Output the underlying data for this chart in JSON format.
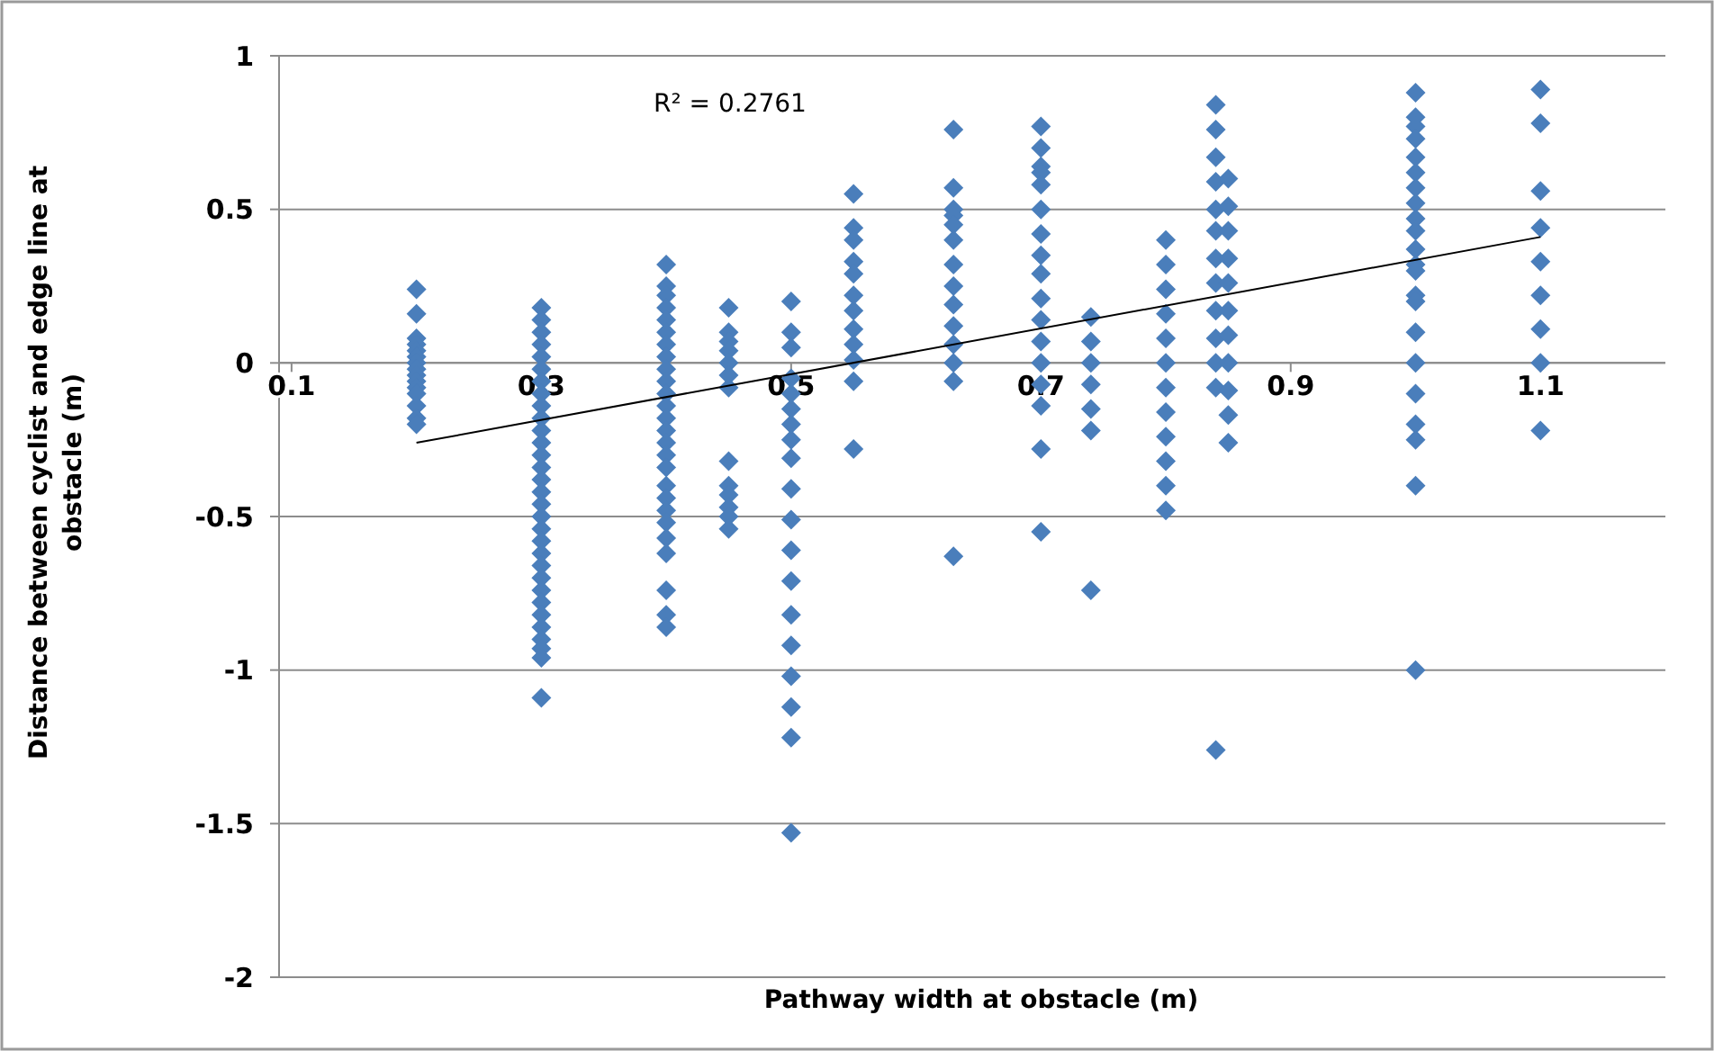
{
  "chart_data": {
    "type": "scatter",
    "xlabel": "Pathway width at obstacle (m)",
    "ylabel": "Distance between cyclist and edge line at obstacle (m)",
    "xlim": [
      0.09,
      1.2
    ],
    "ylim": [
      -2,
      1
    ],
    "xticks": [
      0.1,
      0.3,
      0.5,
      0.7,
      0.9,
      1.1
    ],
    "yticks": [
      1,
      0.5,
      0,
      -0.5,
      -1,
      -1.5,
      -2
    ],
    "grid": "y",
    "annotations": [
      "R² = 0.2761"
    ],
    "series": [
      {
        "marker": "diamond",
        "color": "#4a7ebb",
        "x": [
          0.2,
          0.2,
          0.2,
          0.2,
          0.2,
          0.2,
          0.2,
          0.2,
          0.2,
          0.2,
          0.2,
          0.2,
          0.2,
          0.2,
          0.2,
          0.3,
          0.3,
          0.3,
          0.3,
          0.3,
          0.3,
          0.3,
          0.3,
          0.3,
          0.3,
          0.3,
          0.3,
          0.3,
          0.3,
          0.3,
          0.3,
          0.3,
          0.3,
          0.3,
          0.3,
          0.3,
          0.3,
          0.3,
          0.3,
          0.3,
          0.3,
          0.3,
          0.3,
          0.3,
          0.3,
          0.3,
          0.4,
          0.4,
          0.4,
          0.4,
          0.4,
          0.4,
          0.4,
          0.4,
          0.4,
          0.4,
          0.4,
          0.4,
          0.4,
          0.4,
          0.4,
          0.4,
          0.4,
          0.4,
          0.4,
          0.4,
          0.4,
          0.4,
          0.4,
          0.4,
          0.4,
          0.4,
          0.45,
          0.45,
          0.45,
          0.45,
          0.45,
          0.45,
          0.45,
          0.45,
          0.45,
          0.45,
          0.45,
          0.45,
          0.45,
          0.5,
          0.5,
          0.5,
          0.5,
          0.5,
          0.5,
          0.5,
          0.5,
          0.5,
          0.5,
          0.5,
          0.5,
          0.5,
          0.5,
          0.5,
          0.5,
          0.5,
          0.5,
          0.5,
          0.55,
          0.55,
          0.55,
          0.55,
          0.55,
          0.55,
          0.55,
          0.55,
          0.55,
          0.55,
          0.55,
          0.55,
          0.63,
          0.63,
          0.63,
          0.63,
          0.63,
          0.63,
          0.63,
          0.63,
          0.63,
          0.63,
          0.63,
          0.63,
          0.63,
          0.63,
          0.7,
          0.7,
          0.7,
          0.7,
          0.7,
          0.7,
          0.7,
          0.7,
          0.7,
          0.7,
          0.7,
          0.7,
          0.7,
          0.7,
          0.7,
          0.7,
          0.7,
          0.74,
          0.74,
          0.74,
          0.74,
          0.74,
          0.74,
          0.74,
          0.8,
          0.8,
          0.8,
          0.8,
          0.8,
          0.8,
          0.8,
          0.8,
          0.8,
          0.8,
          0.8,
          0.8,
          0.84,
          0.84,
          0.84,
          0.84,
          0.84,
          0.84,
          0.84,
          0.84,
          0.84,
          0.84,
          0.84,
          0.84,
          0.84,
          0.85,
          0.85,
          0.85,
          0.85,
          0.85,
          0.85,
          0.85,
          0.85,
          0.85,
          0.85,
          0.85,
          1.0,
          1.0,
          1.0,
          1.0,
          1.0,
          1.0,
          1.0,
          1.0,
          1.0,
          1.0,
          1.0,
          1.0,
          1.0,
          1.0,
          1.0,
          1.0,
          1.0,
          1.0,
          1.0,
          1.0,
          1.0,
          1.0,
          1.1,
          1.1,
          1.1,
          1.1,
          1.1,
          1.1,
          1.1,
          1.1,
          1.1
        ],
        "values": [
          0.24,
          0.16,
          0.08,
          0.06,
          0.04,
          0.02,
          0,
          -0.02,
          -0.04,
          -0.06,
          -0.08,
          -0.1,
          -0.14,
          -0.18,
          -0.2,
          0.18,
          0.14,
          0.1,
          0.06,
          0.02,
          -0.02,
          -0.06,
          -0.1,
          -0.14,
          -0.18,
          -0.22,
          -0.26,
          -0.3,
          -0.34,
          -0.38,
          -0.42,
          -0.46,
          -0.5,
          -0.54,
          -0.58,
          -0.62,
          -0.66,
          -0.7,
          -0.74,
          -0.78,
          -0.82,
          -0.86,
          -0.9,
          -0.93,
          -0.96,
          -1.09,
          0.32,
          0.25,
          0.22,
          0.18,
          0.14,
          0.1,
          0.06,
          0.02,
          -0.02,
          -0.06,
          -0.1,
          -0.14,
          -0.18,
          -0.22,
          -0.26,
          -0.3,
          -0.34,
          -0.4,
          -0.44,
          -0.48,
          -0.52,
          -0.57,
          -0.62,
          -0.74,
          -0.82,
          -0.86,
          0.18,
          0.1,
          0.07,
          0.04,
          0,
          -0.04,
          -0.08,
          -0.32,
          -0.4,
          -0.43,
          -0.47,
          -0.5,
          -0.54,
          0.2,
          0.1,
          0.05,
          -0.05,
          -0.1,
          -0.15,
          -0.2,
          -0.25,
          -0.31,
          -0.41,
          -0.51,
          -0.61,
          -0.71,
          -0.82,
          -0.92,
          -1.02,
          -1.12,
          -1.22,
          -1.53,
          0.55,
          0.44,
          0.4,
          0.33,
          0.29,
          0.22,
          0.17,
          0.11,
          0.06,
          0.01,
          -0.06,
          -0.28,
          0.76,
          0.57,
          0.5,
          0.48,
          0.45,
          0.4,
          0.32,
          0.25,
          0.19,
          0.12,
          0.06,
          0,
          -0.06,
          -0.63,
          0.77,
          0.7,
          0.64,
          0.62,
          0.58,
          0.5,
          0.42,
          0.35,
          0.29,
          0.21,
          0.14,
          0.07,
          0,
          -0.07,
          -0.14,
          -0.28,
          -0.55,
          0.15,
          0.07,
          0,
          -0.07,
          -0.15,
          -0.22,
          -0.74,
          0.4,
          0.32,
          0.24,
          0.16,
          0.08,
          0,
          -0.08,
          -0.16,
          -0.24,
          -0.32,
          -0.4,
          -0.48,
          0.84,
          0.76,
          0.67,
          0.59,
          0.5,
          0.43,
          0.34,
          0.26,
          0.17,
          0.08,
          0,
          -0.08,
          -1.26,
          0.6,
          0.51,
          0.43,
          0.34,
          0.26,
          0.17,
          0.09,
          0,
          -0.09,
          -0.17,
          -0.26,
          0.88,
          0.8,
          0.77,
          0.73,
          0.67,
          0.62,
          0.57,
          0.52,
          0.47,
          0.43,
          0.37,
          0.32,
          0.3,
          0.22,
          0.2,
          0.1,
          0,
          -0.1,
          -0.2,
          -0.25,
          -0.4,
          -1.0,
          0.89,
          0.78,
          0.56,
          0.44,
          0.33,
          0.22,
          0.11,
          0,
          -0.22
        ]
      },
      {
        "type": "line",
        "marker": "none",
        "color": "#000000",
        "x": [
          0.2,
          1.1
        ],
        "values": [
          -0.26,
          0.41
        ]
      }
    ]
  }
}
